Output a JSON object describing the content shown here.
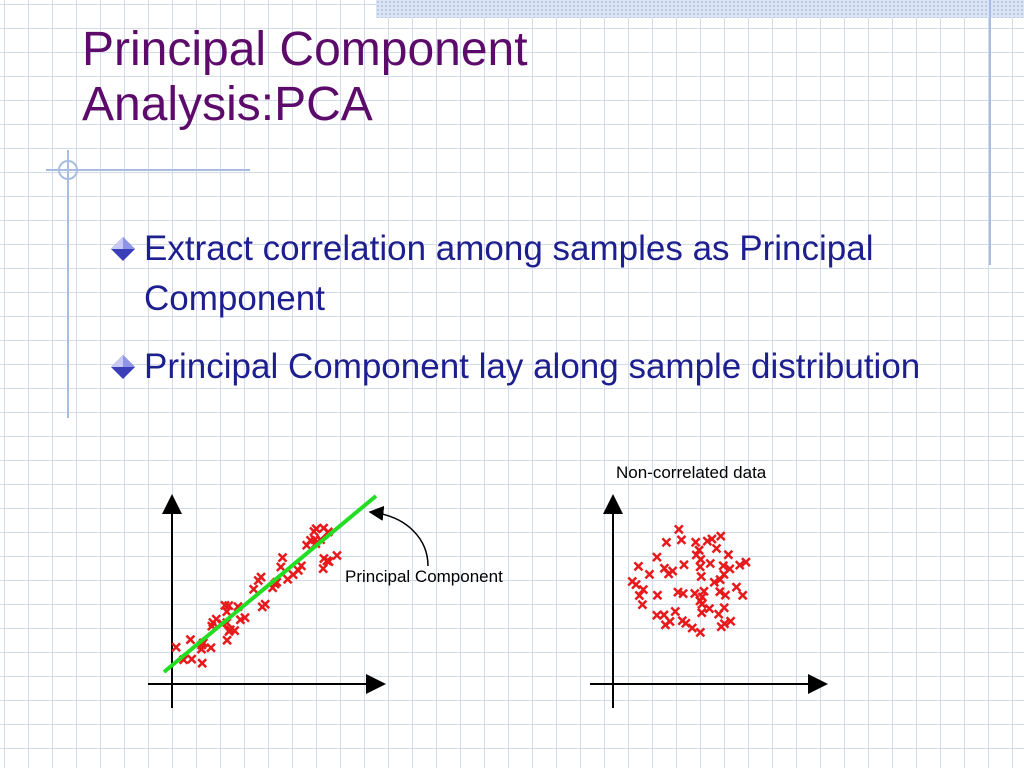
{
  "slide": {
    "title_line1": "Principal Component",
    "title_line2": "Analysis:PCA",
    "bullets": [
      {
        "icon": "diamond-bullet-icon",
        "text": "Extract correlation among samples as Principal Component"
      },
      {
        "icon": "diamond-bullet-icon",
        "text": "Principal Component lay along sample distribution"
      }
    ]
  },
  "figure_left": {
    "annotation": "Principal Component",
    "marker": "x-marker-icon",
    "line_color": "#22dd22",
    "marker_color": "#e8191b"
  },
  "figure_right": {
    "caption": "Non-correlated data",
    "marker": "x-marker-icon",
    "marker_color": "#e8191b"
  },
  "colors": {
    "title": "#5c0b6a",
    "body_text": "#1d1f8f",
    "grid": "#d4dcec",
    "accent_line": "#a8bde0"
  }
}
